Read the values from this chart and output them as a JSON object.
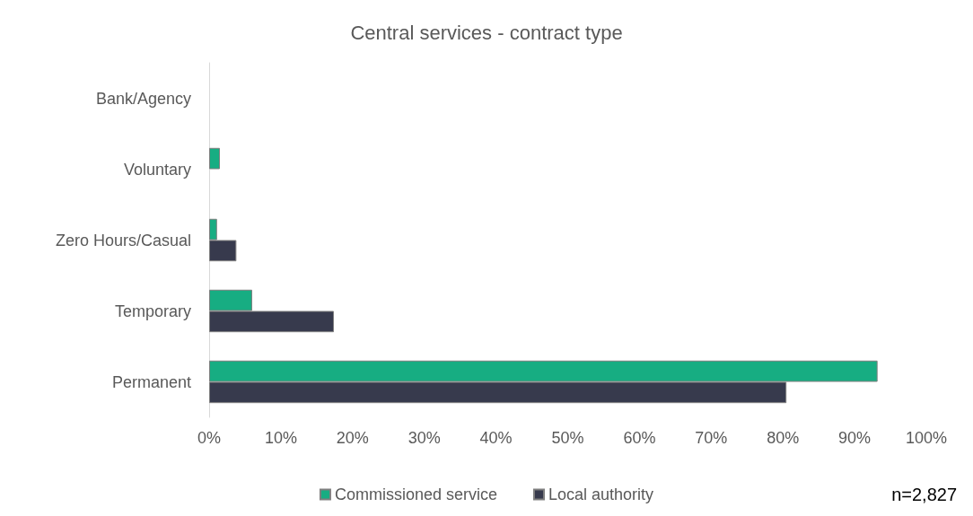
{
  "chart_data": {
    "type": "bar",
    "orientation": "horizontal",
    "title": "Central services - contract type",
    "categories": [
      "Bank/Agency",
      "Voluntary",
      "Zero Hours/Casual",
      "Temporary",
      "Permanent"
    ],
    "series": [
      {
        "name": "Commissioned service",
        "color": "#17ad82",
        "values": [
          0,
          1.5,
          1.1,
          6.0,
          93.2
        ]
      },
      {
        "name": "Local authority",
        "color": "#373a4d",
        "values": [
          0,
          0,
          3.8,
          17.4,
          80.5
        ]
      }
    ],
    "xlim": [
      0,
      100
    ],
    "xticks": [
      {
        "value": 0,
        "label": "0%"
      },
      {
        "value": 10,
        "label": "10%"
      },
      {
        "value": 20,
        "label": "20%"
      },
      {
        "value": 30,
        "label": "30%"
      },
      {
        "value": 40,
        "label": "40%"
      },
      {
        "value": 50,
        "label": "50%"
      },
      {
        "value": 60,
        "label": "60%"
      },
      {
        "value": 70,
        "label": "70%"
      },
      {
        "value": 80,
        "label": "80%"
      },
      {
        "value": 90,
        "label": "90%"
      },
      {
        "value": 100,
        "label": "100%"
      }
    ],
    "grid": false,
    "legend": "bottom",
    "annotations": [
      "n=2,827"
    ]
  }
}
